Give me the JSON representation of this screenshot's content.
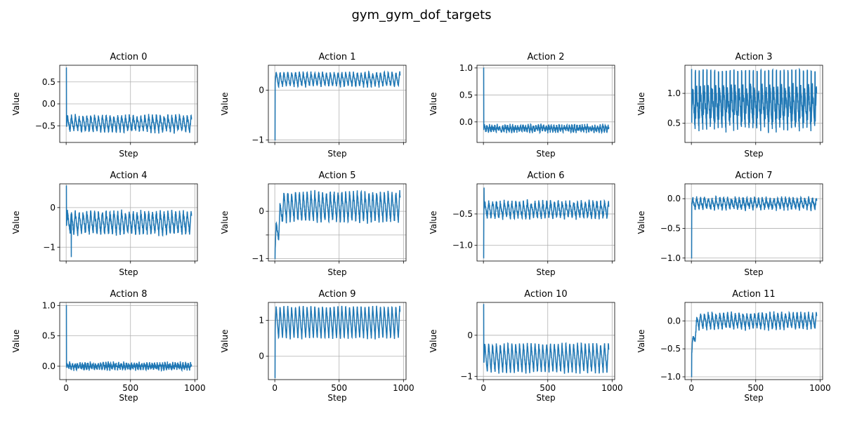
{
  "figure": {
    "title": "gym_gym_dof_targets"
  },
  "style": {
    "line_color": "#1f77b4",
    "grid_color": "#b0b0b0",
    "axes_color": "#000000",
    "background": "#ffffff"
  },
  "chart_data": [
    {
      "type": "line",
      "title": "Action 0",
      "xlabel": "Step",
      "ylabel": "Value",
      "xlim": [
        -50,
        1020
      ],
      "ylim": [
        -0.88,
        0.88
      ],
      "yticks": [
        0.5,
        0.0,
        -0.5
      ],
      "ytick_labels": [
        "0.5",
        "0.0",
        "−0.5"
      ],
      "xticks": [
        0,
        500,
        1000
      ],
      "xtick_labels": [],
      "grid": true,
      "series": [
        {
          "values_summary": {
            "start": 0.82,
            "start_length": 3,
            "settle": -0.45,
            "amplitude": 0.18,
            "period": 30,
            "length": 975,
            "drift": 0,
            "amp_growth": 0,
            "peak_spikes": 1,
            "noise": 0.05,
            "seed": 1
          }
        }
      ]
    },
    {
      "type": "line",
      "title": "Action 1",
      "xlabel": "Step",
      "ylabel": "Value",
      "xlim": [
        -50,
        1020
      ],
      "ylim": [
        -1.05,
        0.5
      ],
      "yticks": [
        0,
        -1
      ],
      "ytick_labels": [
        "0",
        "−1"
      ],
      "xticks": [
        0,
        500,
        1000
      ],
      "xtick_labels": [],
      "grid": true,
      "series": [
        {
          "values_summary": {
            "start": -1.0,
            "start_length": 3,
            "settle": 0.22,
            "amplitude": 0.14,
            "period": 30,
            "length": 975,
            "drift": 0,
            "amp_growth": 0,
            "peak_spikes": 0,
            "noise": 0.03,
            "seed": 2
          }
        }
      ]
    },
    {
      "type": "line",
      "title": "Action 2",
      "xlabel": "Step",
      "ylabel": "Value",
      "xlim": [
        -50,
        1020
      ],
      "ylim": [
        -0.38,
        1.05
      ],
      "yticks": [
        1.0,
        0.5,
        0.0
      ],
      "ytick_labels": [
        "1.0",
        "0.5",
        "0.0"
      ],
      "xticks": [
        0,
        500,
        1000
      ],
      "xtick_labels": [],
      "grid": true,
      "series": [
        {
          "values_summary": {
            "start": 1.0,
            "start_length": 3,
            "settle": -0.12,
            "amplitude": 0.05,
            "period": 20,
            "length": 975,
            "drift": 0,
            "amp_growth": 0,
            "peak_spikes": 0,
            "noise": 0.04,
            "seed": 3
          }
        }
      ]
    },
    {
      "type": "line",
      "title": "Action 3",
      "xlabel": "Step",
      "ylabel": "Value",
      "xlim": [
        -50,
        1020
      ],
      "ylim": [
        0.18,
        1.47
      ],
      "yticks": [
        1.0,
        0.5
      ],
      "ytick_labels": [
        "1.0",
        "0.5"
      ],
      "xticks": [
        0,
        500,
        1000
      ],
      "xtick_labels": [],
      "grid": true,
      "series": [
        {
          "values_summary": {
            "start": 1.4,
            "start_length": 3,
            "settle": 0.75,
            "amplitude": 0.35,
            "period": 30,
            "length": 975,
            "drift": 0,
            "amp_growth": 0,
            "peak_spikes": 0,
            "noise": 0.1,
            "seed": 4,
            "spiky_to": 1.4
          }
        }
      ]
    },
    {
      "type": "line",
      "title": "Action 4",
      "xlabel": "Step",
      "ylabel": "Value",
      "xlim": [
        -50,
        1020
      ],
      "ylim": [
        -1.35,
        0.6
      ],
      "yticks": [
        0,
        -1
      ],
      "ytick_labels": [
        "0",
        "−1"
      ],
      "xticks": [
        0,
        500,
        1000
      ],
      "xtick_labels": [],
      "grid": true,
      "series": [
        {
          "values_summary": {
            "start": 0.55,
            "start_length": 3,
            "settle": -0.38,
            "amplitude": 0.28,
            "period": 30,
            "length": 975,
            "drift": 0,
            "amp_growth": 0,
            "peak_spikes": 0,
            "noise": 0.07,
            "seed": 5,
            "dip_at": 40,
            "dip_value": -1.25
          }
        }
      ]
    },
    {
      "type": "line",
      "title": "Action 5",
      "xlabel": "Step",
      "ylabel": "Value",
      "xlim": [
        -50,
        1020
      ],
      "ylim": [
        -1.05,
        0.58
      ],
      "yticks": [
        0,
        -0.5,
        -1
      ],
      "ytick_labels": [
        "0",
        "",
        "−1"
      ],
      "xticks": [
        0,
        500,
        1000
      ],
      "xtick_labels": [],
      "grid": true,
      "series": [
        {
          "values_summary": {
            "start": -1.0,
            "start_length": 3,
            "settle": 0.1,
            "amplitude": 0.32,
            "period": 30,
            "length": 975,
            "drift": 0,
            "amp_growth": 0,
            "peak_spikes": 0,
            "noise": 0.05,
            "seed": 6,
            "ramp_from": -0.7,
            "ramp_until": 60
          }
        }
      ]
    },
    {
      "type": "line",
      "title": "Action 6",
      "xlabel": "Step",
      "ylabel": "Value",
      "xlim": [
        -50,
        1020
      ],
      "ylim": [
        -1.25,
        -0.02
      ],
      "yticks": [
        -0.5,
        -1.0
      ],
      "ytick_labels": [
        "−0.5",
        "−1.0"
      ],
      "xticks": [
        0,
        500,
        1000
      ],
      "xtick_labels": [],
      "grid": true,
      "series": [
        {
          "values_summary": {
            "start": -1.2,
            "start_length": 3,
            "settle": -0.43,
            "amplitude": 0.13,
            "period": 30,
            "length": 975,
            "drift": 0,
            "amp_growth": 0,
            "peak_spikes": 0,
            "noise": 0.04,
            "seed": 7,
            "peak_at": 5,
            "peak_value": -0.08
          }
        }
      ]
    },
    {
      "type": "line",
      "title": "Action 7",
      "xlabel": "Step",
      "ylabel": "Value",
      "xlim": [
        -50,
        1020
      ],
      "ylim": [
        -1.05,
        0.25
      ],
      "yticks": [
        0.0,
        -0.5,
        -1.0
      ],
      "ytick_labels": [
        "0.0",
        "−0.5",
        "−1.0"
      ],
      "xticks": [
        0,
        500,
        1000
      ],
      "xtick_labels": [],
      "grid": true,
      "series": [
        {
          "values_summary": {
            "start": -1.0,
            "start_length": 3,
            "settle": -0.08,
            "amplitude": 0.09,
            "period": 30,
            "length": 975,
            "drift": 0,
            "amp_growth": 0,
            "peak_spikes": 1,
            "noise": 0.04,
            "seed": 8
          }
        }
      ]
    },
    {
      "type": "line",
      "title": "Action 8",
      "xlabel": "Step",
      "ylabel": "Value",
      "xlim": [
        -50,
        1020
      ],
      "ylim": [
        -0.22,
        1.05
      ],
      "yticks": [
        1.0,
        0.5,
        0.0
      ],
      "ytick_labels": [
        "1.0",
        "0.5",
        "0.0"
      ],
      "xticks": [
        0,
        500,
        1000
      ],
      "xtick_labels": [
        "0",
        "500",
        "1000"
      ],
      "grid": true,
      "series": [
        {
          "values_summary": {
            "start": 1.0,
            "start_length": 3,
            "settle": 0.0,
            "amplitude": 0.04,
            "period": 20,
            "length": 975,
            "drift": 0,
            "amp_growth": 0,
            "peak_spikes": 0,
            "noise": 0.04,
            "seed": 9
          }
        }
      ]
    },
    {
      "type": "line",
      "title": "Action 9",
      "xlabel": "Step",
      "ylabel": "Value",
      "xlim": [
        -50,
        1020
      ],
      "ylim": [
        -0.65,
        1.5
      ],
      "yticks": [
        1,
        0
      ],
      "ytick_labels": [
        "1",
        "0"
      ],
      "xticks": [
        0,
        500,
        1000
      ],
      "xtick_labels": [
        "0",
        "500",
        "1000"
      ],
      "grid": true,
      "series": [
        {
          "values_summary": {
            "start": -0.6,
            "start_length": 3,
            "settle": 0.95,
            "amplitude": 0.45,
            "period": 30,
            "length": 975,
            "drift": 0,
            "amp_growth": 0,
            "peak_spikes": 0,
            "noise": 0.03,
            "seed": 10,
            "clip_top": 1.42
          }
        }
      ]
    },
    {
      "type": "line",
      "title": "Action 10",
      "xlabel": "Step",
      "ylabel": "Value",
      "xlim": [
        -50,
        1020
      ],
      "ylim": [
        -1.08,
        0.8
      ],
      "yticks": [
        0,
        -1
      ],
      "ytick_labels": [
        "0",
        "−1"
      ],
      "xticks": [
        0,
        500,
        1000
      ],
      "xtick_labels": [
        "0",
        "500",
        "1000"
      ],
      "grid": true,
      "series": [
        {
          "values_summary": {
            "start": 0.75,
            "start_length": 3,
            "settle": -0.55,
            "amplitude": 0.35,
            "period": 30,
            "length": 975,
            "drift": 0,
            "amp_growth": 0,
            "peak_spikes": 0,
            "noise": 0.04,
            "seed": 11
          }
        }
      ]
    },
    {
      "type": "line",
      "title": "Action 11",
      "xlabel": "Step",
      "ylabel": "Value",
      "xlim": [
        -50,
        1020
      ],
      "ylim": [
        -1.05,
        0.33
      ],
      "yticks": [
        0.0,
        -0.5,
        -1.0
      ],
      "ytick_labels": [
        "0.0",
        "−0.5",
        "−1.0"
      ],
      "xticks": [
        0,
        500,
        1000
      ],
      "xtick_labels": [
        "0",
        "500",
        "1000"
      ],
      "grid": true,
      "series": [
        {
          "values_summary": {
            "start": -1.0,
            "start_length": 3,
            "settle": 0.0,
            "amplitude": 0.14,
            "period": 30,
            "length": 975,
            "drift": 0,
            "amp_growth": 0,
            "peak_spikes": 0,
            "noise": 0.04,
            "seed": 12,
            "ramp_from": -0.55,
            "ramp_until": 50
          }
        }
      ]
    }
  ]
}
